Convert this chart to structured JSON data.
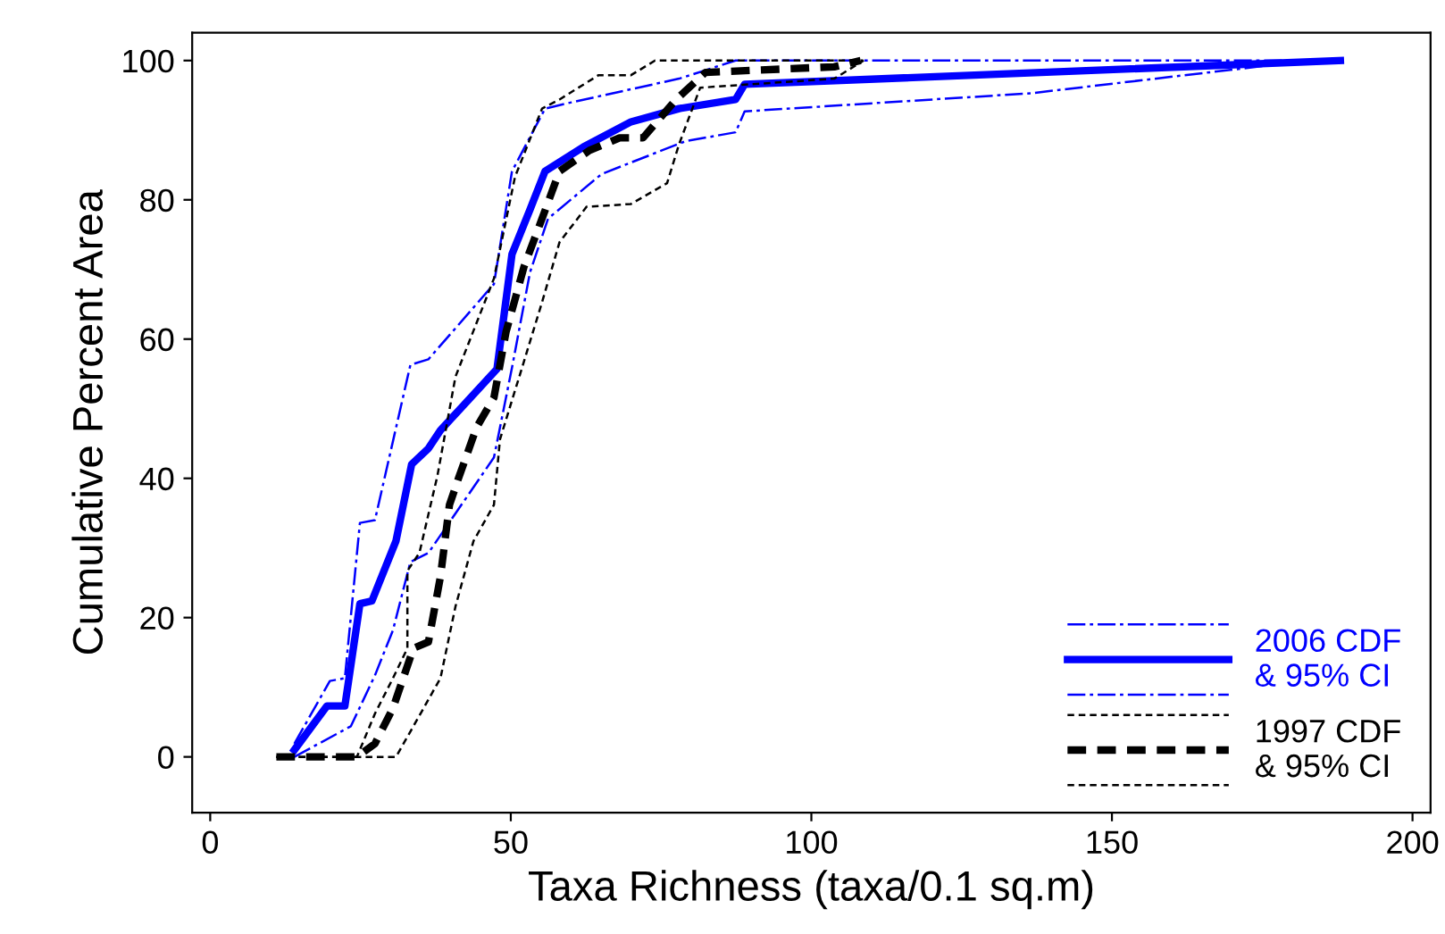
{
  "chart_data": {
    "type": "line",
    "xlabel": "Taxa Richness (taxa/0.1 sq.m)",
    "ylabel": "Cumulative Percent Area",
    "xlim": [
      -3,
      203
    ],
    "ylim": [
      -8,
      104
    ],
    "xticks": [
      0,
      50,
      100,
      150,
      200
    ],
    "yticks": [
      0,
      20,
      40,
      60,
      80,
      100
    ],
    "grid": false,
    "legend": "bottom right",
    "series": [
      {
        "name": "2006 CDF\n& 95% CI",
        "color": "#0000ff",
        "line_style": "solid",
        "x": [
          14,
          19.4,
          22.4,
          24.9,
          26.9,
          30.9,
          33.5,
          36.3,
          38.3,
          47.7,
          50.2,
          53.2,
          55.7,
          62.1,
          70,
          78,
          87.4,
          88.9,
          188
        ],
        "values": [
          1,
          7.3,
          7.3,
          22,
          22.4,
          31,
          42,
          44.3,
          46.9,
          55.7,
          72.2,
          78.6,
          84.1,
          87.6,
          91.2,
          93.1,
          94.4,
          96.6,
          100
        ]
      },
      {
        "color": "#0000ff",
        "line_style": "dashdot",
        "x": [
          14,
          19.9,
          22.4,
          24.9,
          27.4,
          33.3,
          36.3,
          47.2,
          50.2,
          55.7,
          60.1,
          78,
          87.4,
          188
        ],
        "values": [
          1.9,
          10.9,
          11.3,
          33.6,
          34,
          56.3,
          57.1,
          67.9,
          84.1,
          93.1,
          94,
          97.4,
          100,
          100
        ]
      },
      {
        "color": "#0000ff",
        "line_style": "dashdot",
        "x": [
          14,
          23.4,
          27.4,
          30.4,
          33.3,
          36.3,
          47.2,
          50.2,
          53.2,
          56.2,
          65.1,
          79,
          87.4,
          88.9,
          136.5,
          179,
          188
        ],
        "values": [
          0,
          4.4,
          11.7,
          18.2,
          28,
          29.3,
          43,
          55.9,
          69.6,
          77.3,
          83.7,
          88.4,
          89.7,
          92.7,
          95.3,
          99.6,
          100
        ]
      },
      {
        "name": "1997 CDF\n& 95% CI",
        "color": "#000000",
        "line_style": "dashed",
        "x": [
          11,
          24.4,
          27.4,
          30.4,
          33.8,
          36.3,
          38.3,
          39.8,
          41.3,
          44.3,
          47.2,
          49.2,
          52.2,
          55.2,
          58.1,
          63.1,
          68.1,
          72,
          77.5,
          82.4,
          103.8,
          108.2
        ],
        "values": [
          0,
          0,
          1.9,
          7,
          15.6,
          16.5,
          25.9,
          36.2,
          40,
          47.3,
          51.6,
          61,
          70.4,
          77.3,
          84.1,
          87.1,
          88.9,
          88.9,
          94.4,
          98.3,
          99.1,
          100
        ]
      },
      {
        "color": "#000000",
        "line_style": "dashed",
        "x": [
          11,
          24.4,
          27.4,
          30.4,
          32.8,
          32.8,
          34.8,
          37.8,
          40.8,
          47.2,
          50.7,
          55.2,
          58.1,
          64.6,
          70,
          74,
          108.6
        ],
        "values": [
          0,
          0,
          6.2,
          11.3,
          15.6,
          26.7,
          29.3,
          40.4,
          54.6,
          68.7,
          83.3,
          93.1,
          94.4,
          97.9,
          97.9,
          100,
          100
        ]
      },
      {
        "color": "#000000",
        "line_style": "dashed",
        "x": [
          11,
          30.9,
          33.8,
          38.3,
          40.8,
          43.8,
          47.2,
          48.2,
          51.7,
          55.2,
          58.1,
          62.6,
          70,
          76,
          78,
          81.5,
          103.8,
          108.7
        ],
        "values": [
          0,
          0,
          4.4,
          11.3,
          21.6,
          31,
          36.2,
          45.6,
          55.4,
          65.3,
          73.9,
          79,
          79.4,
          82.4,
          88,
          96.1,
          97.4,
          100
        ]
      }
    ]
  }
}
